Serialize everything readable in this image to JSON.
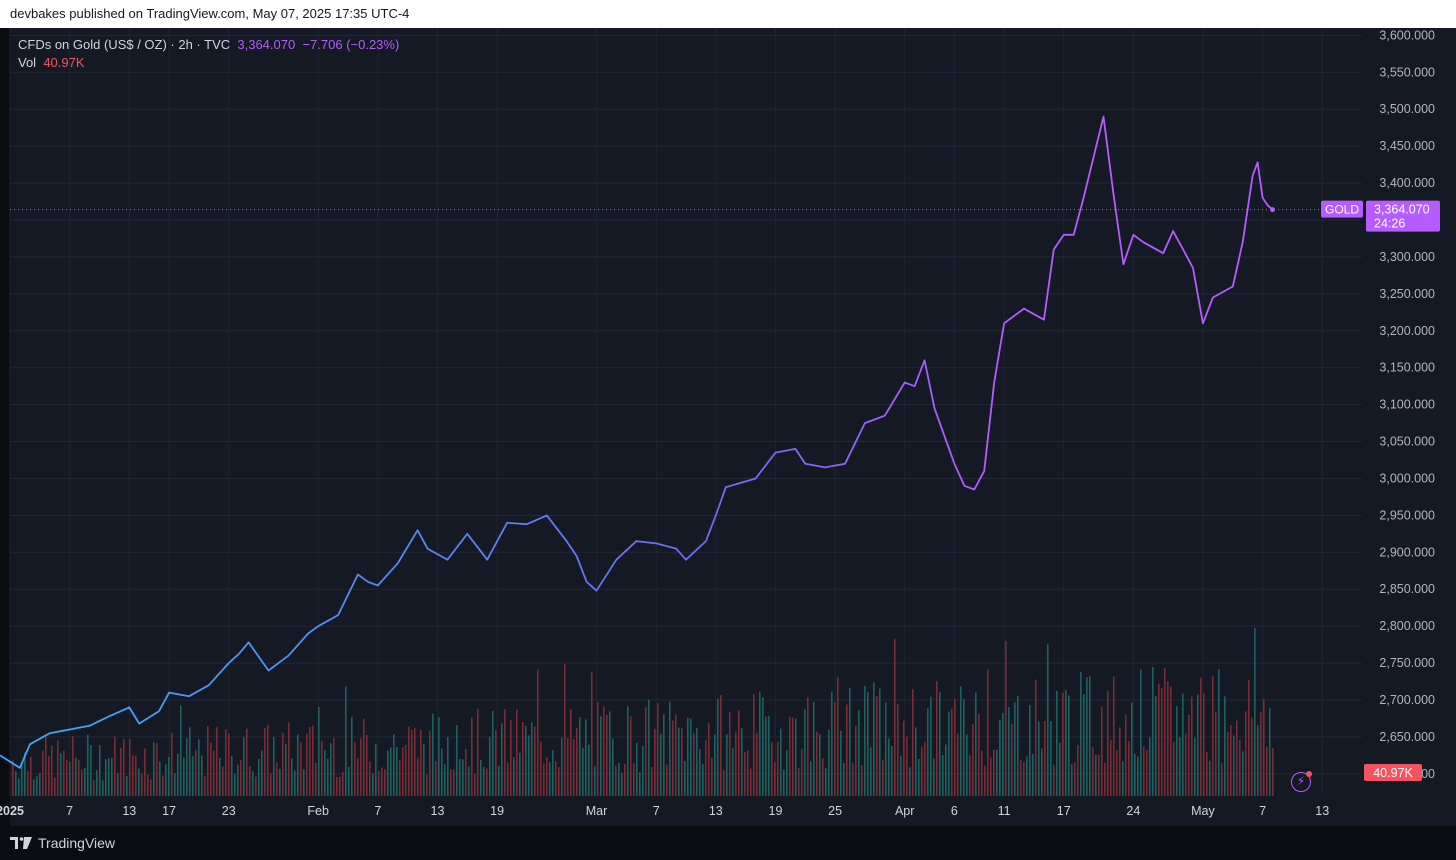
{
  "publish_text": "devbakes published on TradingView.com, May 07, 2025 17:35 UTC-4",
  "legend": {
    "symbol": "CFDs on Gold (US$ / OZ) · 2h · TVC",
    "price": "3,364.070",
    "change": "−7.706 (−0.23%)",
    "vol_label": "Vol",
    "vol_value": "40.97K"
  },
  "price_tag": {
    "ticker": "GOLD",
    "price": "3,364.070",
    "countdown": "24:26"
  },
  "vol_tag": "40.97K",
  "footer_brand": "TradingView",
  "colors": {
    "line_start": "#3fa9f5",
    "line_mid": "#6a6cf0",
    "line_end": "#b55bff",
    "vol_up": "#1f6f6b",
    "vol_down": "#8b2f3a",
    "price_tag": "#b55bff",
    "vol_tag": "#f7525f"
  },
  "chart_data": {
    "type": "line",
    "title": "CFDs on Gold (US$ / OZ) · 2h · TVC",
    "ylim": [
      2570,
      3610
    ],
    "y_ticks": [
      2600,
      2650,
      2700,
      2750,
      2800,
      2850,
      2900,
      2950,
      3000,
      3050,
      3100,
      3150,
      3200,
      3250,
      3300,
      3350,
      3400,
      3450,
      3500,
      3550,
      3600
    ],
    "y_tick_labels": [
      "2,600.000",
      "2,650.000",
      "2,700.000",
      "2,750.000",
      "2,800.000",
      "2,850.000",
      "2,900.000",
      "2,950.000",
      "3,000.000",
      "3,050.000",
      "3,100.000",
      "3,150.000",
      "3,200.000",
      "3,250.000",
      "3,300.000",
      "3,350.000",
      "3,400.000",
      "3,450.000",
      "3,500.000",
      "3,550.000",
      "3,600.000"
    ],
    "x_range": [
      "2025-01-01",
      "2025-05-17"
    ],
    "x_ticks": [
      {
        "date": "2025-01-01",
        "label": "2025",
        "bold": true
      },
      {
        "date": "2025-01-07",
        "label": "7"
      },
      {
        "date": "2025-01-13",
        "label": "13"
      },
      {
        "date": "2025-01-17",
        "label": "17"
      },
      {
        "date": "2025-01-23",
        "label": "23"
      },
      {
        "date": "2025-02-01",
        "label": "Feb"
      },
      {
        "date": "2025-02-07",
        "label": "7"
      },
      {
        "date": "2025-02-13",
        "label": "13"
      },
      {
        "date": "2025-02-19",
        "label": "19"
      },
      {
        "date": "2025-03-01",
        "label": "Mar"
      },
      {
        "date": "2025-03-07",
        "label": "7"
      },
      {
        "date": "2025-03-13",
        "label": "13"
      },
      {
        "date": "2025-03-19",
        "label": "19"
      },
      {
        "date": "2025-03-25",
        "label": "25"
      },
      {
        "date": "2025-04-01",
        "label": "Apr"
      },
      {
        "date": "2025-04-06",
        "label": "6"
      },
      {
        "date": "2025-04-11",
        "label": "11"
      },
      {
        "date": "2025-04-17",
        "label": "17"
      },
      {
        "date": "2025-04-24",
        "label": "24"
      },
      {
        "date": "2025-05-01",
        "label": "May"
      },
      {
        "date": "2025-05-07",
        "label": "7"
      },
      {
        "date": "2025-05-13",
        "label": "13"
      }
    ],
    "series": [
      {
        "values": [
          [
            "2024-12-31",
            2625
          ],
          [
            "2025-01-02",
            2608
          ],
          [
            "2025-01-03",
            2640
          ],
          [
            "2025-01-05",
            2655
          ],
          [
            "2025-01-07",
            2660
          ],
          [
            "2025-01-09",
            2665
          ],
          [
            "2025-01-11",
            2678
          ],
          [
            "2025-01-13",
            2690
          ],
          [
            "2025-01-14",
            2668
          ],
          [
            "2025-01-16",
            2685
          ],
          [
            "2025-01-17",
            2710
          ],
          [
            "2025-01-19",
            2705
          ],
          [
            "2025-01-21",
            2720
          ],
          [
            "2025-01-23",
            2750
          ],
          [
            "2025-01-24",
            2762
          ],
          [
            "2025-01-25",
            2778
          ],
          [
            "2025-01-27",
            2740
          ],
          [
            "2025-01-29",
            2760
          ],
          [
            "2025-01-31",
            2790
          ],
          [
            "2025-02-01",
            2800
          ],
          [
            "2025-02-03",
            2815
          ],
          [
            "2025-02-05",
            2870
          ],
          [
            "2025-02-06",
            2860
          ],
          [
            "2025-02-07",
            2855
          ],
          [
            "2025-02-09",
            2885
          ],
          [
            "2025-02-11",
            2930
          ],
          [
            "2025-02-12",
            2905
          ],
          [
            "2025-02-14",
            2890
          ],
          [
            "2025-02-16",
            2925
          ],
          [
            "2025-02-18",
            2890
          ],
          [
            "2025-02-20",
            2940
          ],
          [
            "2025-02-22",
            2938
          ],
          [
            "2025-02-24",
            2950
          ],
          [
            "2025-02-26",
            2915
          ],
          [
            "2025-02-27",
            2895
          ],
          [
            "2025-02-28",
            2860
          ],
          [
            "2025-03-01",
            2848
          ],
          [
            "2025-03-03",
            2890
          ],
          [
            "2025-03-05",
            2915
          ],
          [
            "2025-03-07",
            2912
          ],
          [
            "2025-03-09",
            2905
          ],
          [
            "2025-03-10",
            2890
          ],
          [
            "2025-03-12",
            2915
          ],
          [
            "2025-03-13",
            2950
          ],
          [
            "2025-03-14",
            2988
          ],
          [
            "2025-03-17",
            3000
          ],
          [
            "2025-03-19",
            3035
          ],
          [
            "2025-03-21",
            3040
          ],
          [
            "2025-03-22",
            3020
          ],
          [
            "2025-03-24",
            3015
          ],
          [
            "2025-03-26",
            3020
          ],
          [
            "2025-03-28",
            3075
          ],
          [
            "2025-03-30",
            3085
          ],
          [
            "2025-04-01",
            3130
          ],
          [
            "2025-04-02",
            3125
          ],
          [
            "2025-04-03",
            3160
          ],
          [
            "2025-04-04",
            3095
          ],
          [
            "2025-04-06",
            3020
          ],
          [
            "2025-04-07",
            2990
          ],
          [
            "2025-04-08",
            2985
          ],
          [
            "2025-04-09",
            3010
          ],
          [
            "2025-04-10",
            3130
          ],
          [
            "2025-04-11",
            3210
          ],
          [
            "2025-04-13",
            3230
          ],
          [
            "2025-04-15",
            3215
          ],
          [
            "2025-04-16",
            3310
          ],
          [
            "2025-04-17",
            3330
          ],
          [
            "2025-04-18",
            3330
          ],
          [
            "2025-04-19",
            3380
          ],
          [
            "2025-04-21",
            3490
          ],
          [
            "2025-04-22",
            3385
          ],
          [
            "2025-04-23",
            3290
          ],
          [
            "2025-04-24",
            3330
          ],
          [
            "2025-04-25",
            3320
          ],
          [
            "2025-04-27",
            3305
          ],
          [
            "2025-04-28",
            3335
          ],
          [
            "2025-04-29",
            3310
          ],
          [
            "2025-04-30",
            3285
          ],
          [
            "2025-05-01",
            3210
          ],
          [
            "2025-05-02",
            3245
          ],
          [
            "2025-05-04",
            3260
          ],
          [
            "2025-05-05",
            3320
          ],
          [
            "2025-05-06",
            3410
          ],
          [
            "2025-05-06T12",
            3428
          ],
          [
            "2025-05-07",
            3380
          ],
          [
            "2025-05-07T12",
            3370
          ],
          [
            "2025-05-08",
            3364
          ]
        ]
      },
      {
        "name": "Vol",
        "type": "volume",
        "last_value": "40.97K"
      }
    ]
  }
}
